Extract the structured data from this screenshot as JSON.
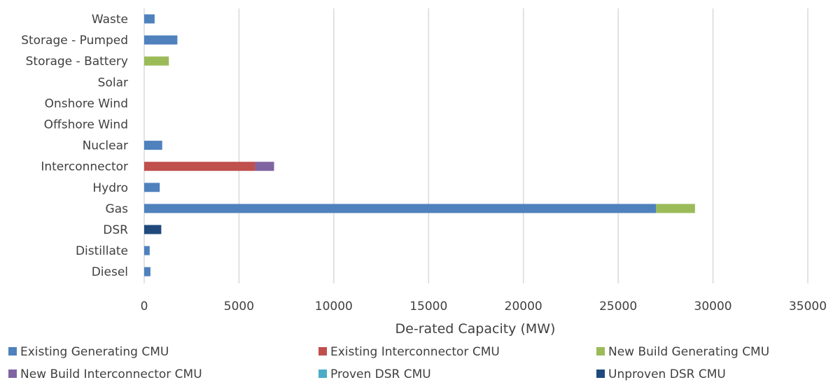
{
  "chart_data": {
    "type": "bar",
    "orientation": "horizontal",
    "stacked": true,
    "categories": [
      "Waste",
      "Storage - Pumped",
      "Storage - Battery",
      "Solar",
      "Onshore Wind",
      "Offshore Wind",
      "Nuclear",
      "Interconnector",
      "Hydro",
      "Gas",
      "DSR",
      "Distillate",
      "Diesel"
    ],
    "series": [
      {
        "name": "Existing Generating CMU",
        "color": "#4f81bd",
        "values": [
          550,
          1750,
          0,
          0,
          0,
          0,
          950,
          0,
          820,
          27000,
          0,
          290,
          330
        ]
      },
      {
        "name": "Existing Interconnector CMU",
        "color": "#c0504d",
        "values": [
          0,
          0,
          0,
          0,
          0,
          0,
          0,
          5850,
          0,
          0,
          0,
          0,
          0
        ]
      },
      {
        "name": "New Build Generating CMU",
        "color": "#9bbb59",
        "values": [
          0,
          0,
          1300,
          0,
          0,
          0,
          0,
          0,
          0,
          2050,
          0,
          0,
          0
        ]
      },
      {
        "name": "New Build Interconnector CMU",
        "color": "#8064a2",
        "values": [
          0,
          0,
          0,
          0,
          0,
          0,
          0,
          1000,
          0,
          0,
          0,
          0,
          0
        ]
      },
      {
        "name": "Proven DSR CMU",
        "color": "#4bacc6",
        "values": [
          0,
          0,
          0,
          0,
          0,
          0,
          0,
          0,
          0,
          0,
          0,
          0,
          0
        ]
      },
      {
        "name": "Unproven DSR CMU",
        "color": "#1f497d",
        "values": [
          0,
          0,
          0,
          0,
          0,
          0,
          0,
          0,
          0,
          0,
          900,
          0,
          0
        ]
      }
    ],
    "xlabel": "De-rated Capacity (MW)",
    "ylabel": "",
    "xlim": [
      0,
      35000
    ],
    "xticks": [
      "0",
      "5000",
      "10000",
      "15000",
      "20000",
      "25000",
      "30000",
      "35000"
    ],
    "grid": true,
    "legend_position": "bottom"
  }
}
